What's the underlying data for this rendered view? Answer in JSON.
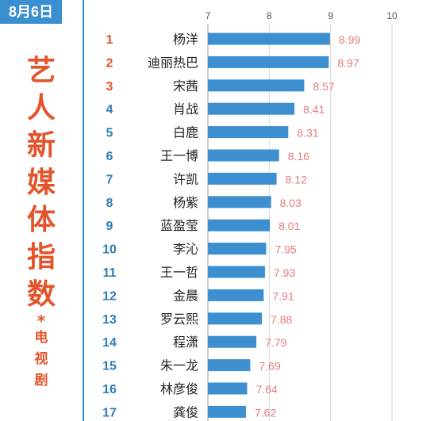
{
  "header": {
    "date_badge": "8月6日",
    "title_chars": [
      "艺",
      "人",
      "新",
      "媒",
      "体",
      "指",
      "数"
    ],
    "note_mark": "*",
    "subtitle_chars": [
      "电",
      "视",
      "剧"
    ]
  },
  "colors": {
    "bar": "#3d8fd0",
    "value_label": "#e57b7b",
    "rank_top3": "#e2542a",
    "rank_other": "#2e7db8",
    "title": "#e2542a",
    "badge_bg": "#3a8fd0",
    "axis_text": "#555555",
    "gridline": "#d7d7d7",
    "divider": "#2e8fc8"
  },
  "chart_data": {
    "type": "bar",
    "orientation": "horizontal",
    "title": "",
    "xlabel": "",
    "ylabel": "",
    "xlim": [
      7,
      10
    ],
    "x_ticks": [
      7,
      8,
      9,
      10
    ],
    "grid": true,
    "legend": "none",
    "ranks": [
      1,
      2,
      3,
      4,
      5,
      6,
      7,
      8,
      9,
      10,
      11,
      12,
      13,
      14,
      15,
      16,
      17
    ],
    "categories": [
      "杨洋",
      "迪丽热巴",
      "宋茜",
      "肖战",
      "白鹿",
      "王一博",
      "许凯",
      "杨紫",
      "蓝盈莹",
      "李沁",
      "王一哲",
      "金晨",
      "罗云熙",
      "程潇",
      "朱一龙",
      "林彦俊",
      "龚俊"
    ],
    "values": [
      8.99,
      8.97,
      8.57,
      8.41,
      8.31,
      8.16,
      8.12,
      8.03,
      8.01,
      7.95,
      7.93,
      7.91,
      7.88,
      7.79,
      7.69,
      7.64,
      7.62
    ],
    "value_labels": [
      "8.99",
      "8.97",
      "8.57",
      "8.41",
      "8.31",
      "8.16",
      "8.12",
      "8.03",
      "8.01",
      "7.95",
      "7.93",
      "7.91",
      "7.88",
      "7.79",
      "7.69",
      "7.64",
      "7.62"
    ]
  }
}
